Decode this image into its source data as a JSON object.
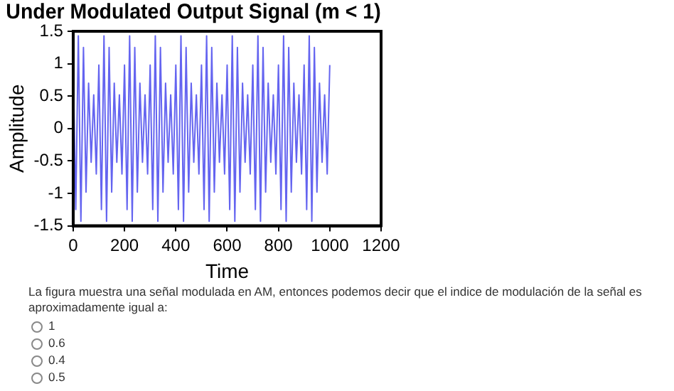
{
  "chart_data": {
    "type": "line",
    "title": "Under Modulated Output Signal (m < 1)",
    "xlabel": "Time",
    "ylabel": "Amplitude",
    "x": [
      0,
      10,
      20,
      30,
      40,
      50,
      60,
      70,
      80,
      90,
      100,
      110,
      120,
      130,
      140,
      150,
      160,
      170,
      180,
      190,
      200,
      210,
      220,
      230,
      240,
      250,
      260,
      270,
      280,
      290,
      300,
      310,
      320,
      330,
      340,
      350,
      360,
      370,
      380,
      390,
      400,
      410,
      420,
      430,
      440,
      450,
      460,
      470,
      480,
      490,
      500,
      510,
      520,
      530,
      540,
      550,
      560,
      570,
      580,
      590,
      600,
      610,
      620,
      630,
      640,
      650,
      660,
      670,
      680,
      690,
      700,
      710,
      720,
      730,
      740,
      750,
      760,
      770,
      780,
      790,
      800,
      810,
      820,
      830,
      840,
      850,
      860,
      870,
      880,
      890,
      900,
      910,
      920,
      930,
      940,
      950,
      960,
      970,
      980,
      990,
      1000
    ],
    "series": [
      {
        "color": "#6464f0",
        "values": [
          0.98,
          -1.25,
          1.43,
          -1.43,
          1.25,
          -0.98,
          0.7,
          -0.52,
          0.52,
          -0.7,
          0.98,
          -1.25,
          1.43,
          -1.43,
          1.25,
          -0.98,
          0.7,
          -0.52,
          0.52,
          -0.7,
          0.98,
          -1.25,
          1.43,
          -1.43,
          1.25,
          -0.98,
          0.7,
          -0.52,
          0.52,
          -0.7,
          0.98,
          -1.25,
          1.43,
          -1.43,
          1.25,
          -0.98,
          0.7,
          -0.52,
          0.52,
          -0.7,
          0.98,
          -1.25,
          1.43,
          -1.43,
          1.25,
          -0.98,
          0.7,
          -0.52,
          0.52,
          -0.7,
          0.98,
          -1.25,
          1.43,
          -1.43,
          1.25,
          -0.98,
          0.7,
          -0.52,
          0.52,
          -0.7,
          0.98,
          -1.25,
          1.43,
          -1.43,
          1.25,
          -0.98,
          0.7,
          -0.52,
          0.52,
          -0.7,
          0.98,
          -1.25,
          1.43,
          -1.43,
          1.25,
          -0.98,
          0.7,
          -0.52,
          0.52,
          -0.7,
          0.98,
          -1.25,
          1.43,
          -1.43,
          1.25,
          -0.98,
          0.7,
          -0.52,
          0.52,
          -0.7,
          0.98,
          -1.25,
          1.43,
          -1.43,
          1.25,
          -0.98,
          0.7,
          -0.52,
          0.52,
          -0.7,
          0.98
        ]
      }
    ],
    "xlim": [
      0,
      1200
    ],
    "xticks": [
      0,
      200,
      400,
      600,
      800,
      1000,
      1200
    ],
    "ylim": [
      -1.5,
      1.5
    ],
    "yticks": [
      -1.5,
      -1,
      -0.5,
      0,
      0.5,
      1,
      1.5
    ],
    "grid": false,
    "legend": false,
    "marker": "none",
    "line_style": "solid",
    "annotations": [
      "La figura muestra una señal modulada en AM, entonces podemos decir que el indice de modulación de la señal es aproximadamente igual a:",
      "1",
      "0.6",
      "0.4",
      "0.5"
    ]
  }
}
